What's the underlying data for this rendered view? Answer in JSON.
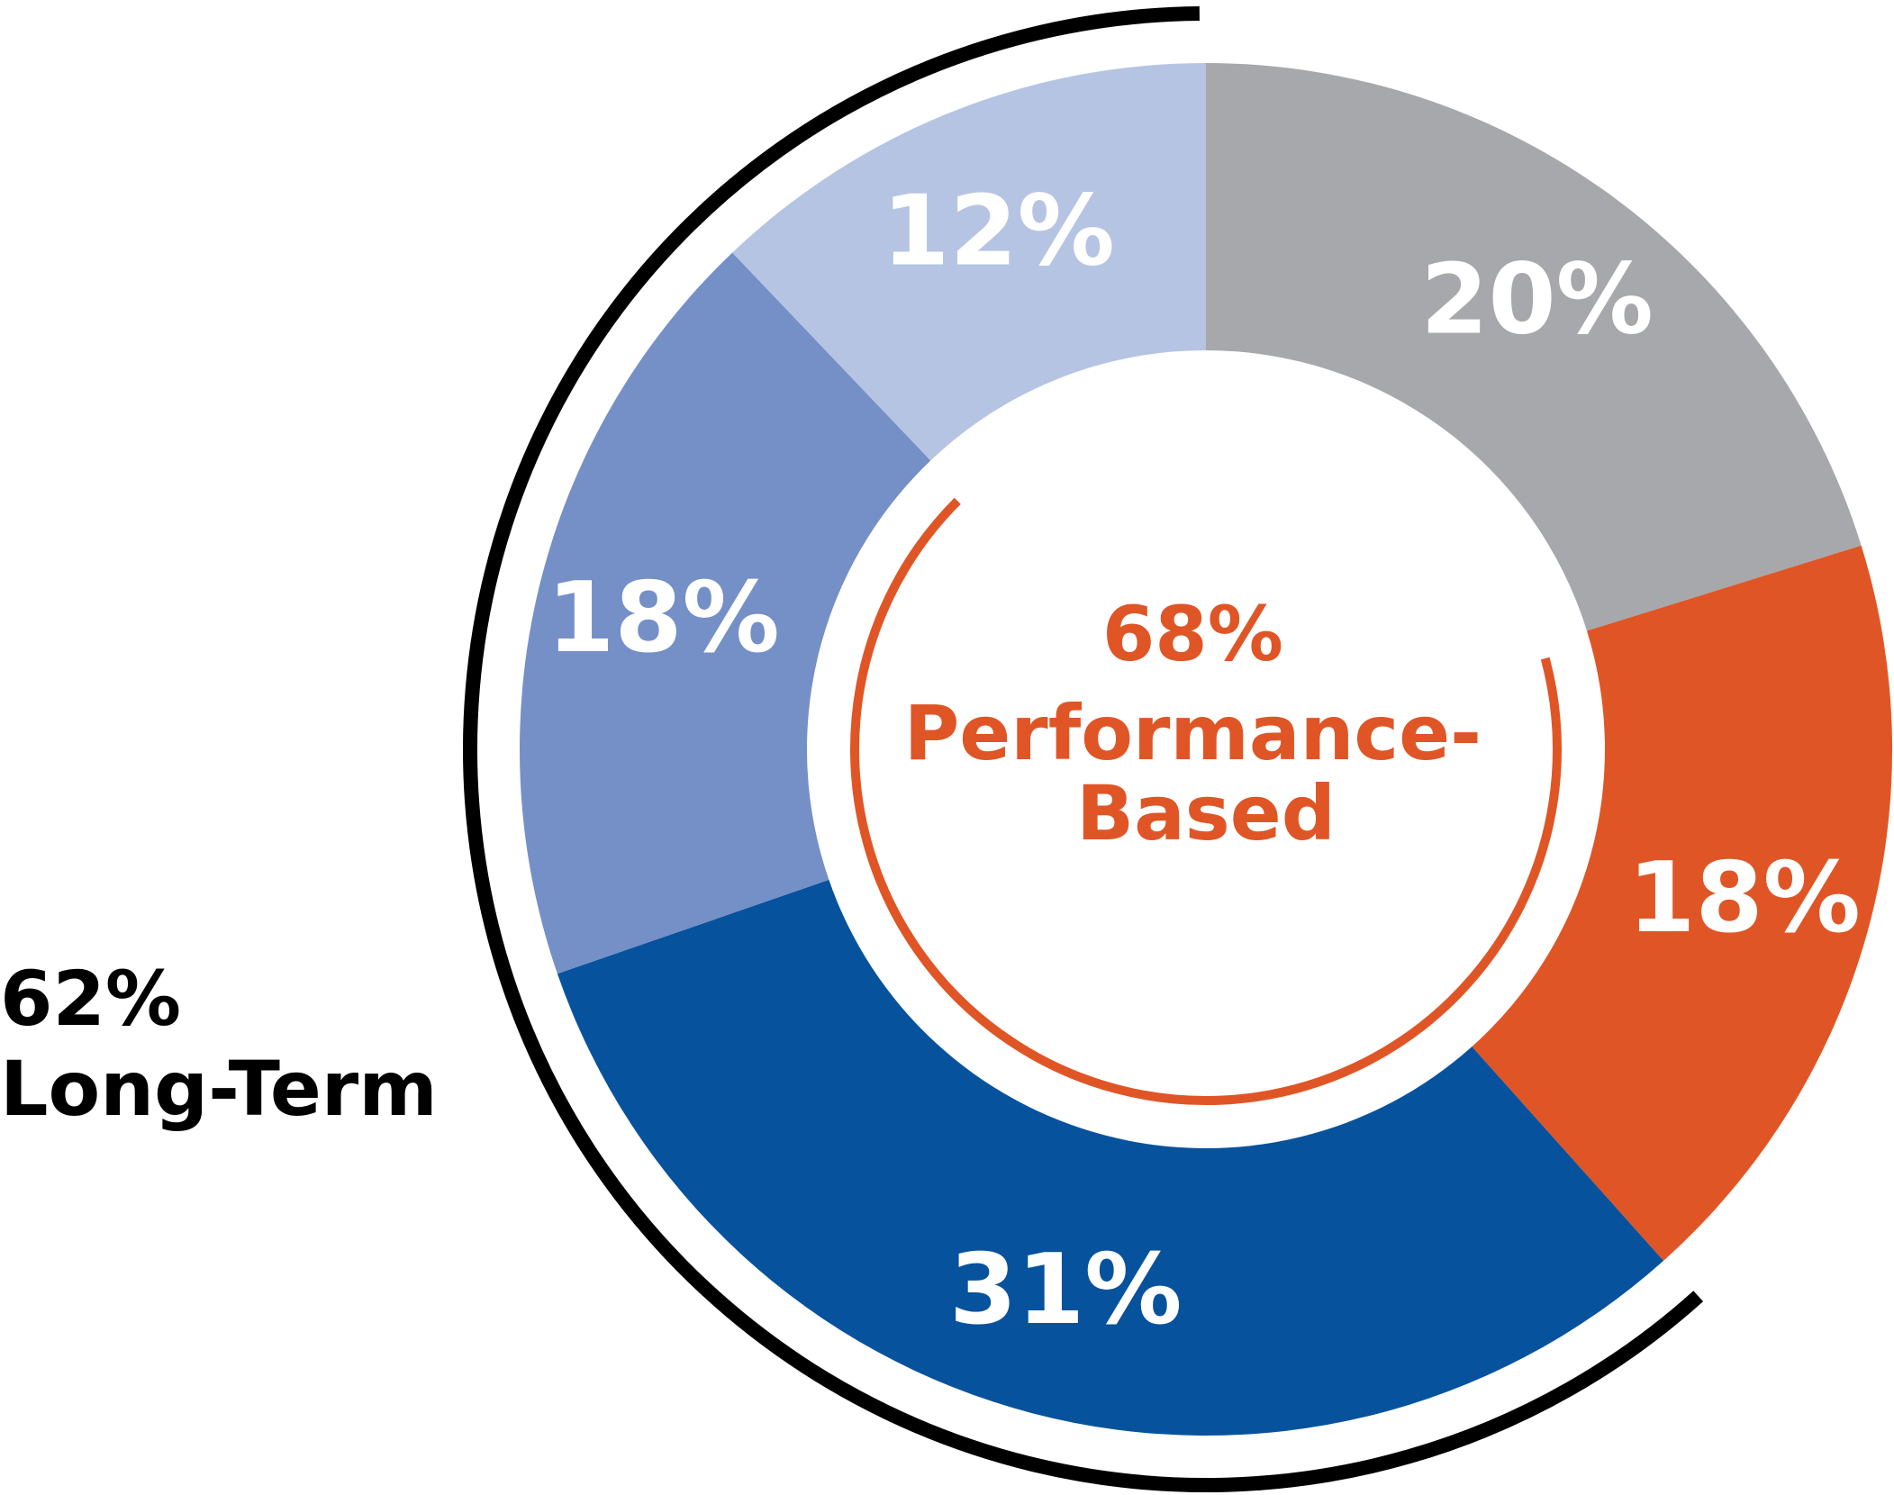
{
  "chart_data": {
    "type": "pie",
    "style": "donut",
    "categories": [
      "",
      "",
      "",
      "",
      ""
    ],
    "values": [
      20,
      18,
      31,
      18,
      12
    ],
    "labels": [
      "20%",
      "18%",
      "31%",
      "18%",
      "12%"
    ],
    "colors": [
      "#a7a8ab",
      "#e05526",
      "#07529c",
      "#758fc7",
      "#b6c4e3"
    ],
    "start": "top, clockwise",
    "groups": {
      "performance": {
        "lines": [
          "68%",
          "Performance-",
          "Based"
        ],
        "color": "#e05526"
      },
      "long_term": {
        "lines": [
          "62%",
          "Long-Term"
        ],
        "color": "#000000"
      }
    },
    "title": "",
    "legend": "none"
  }
}
